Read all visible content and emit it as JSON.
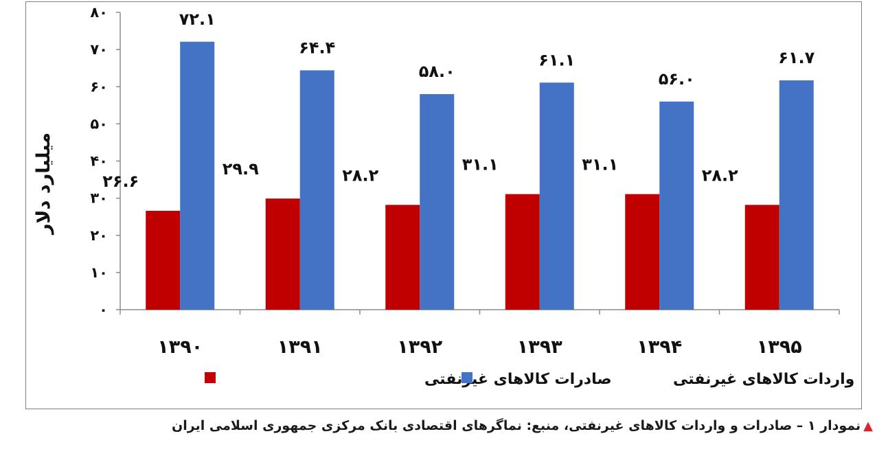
{
  "chart_data": {
    "type": "bar",
    "categories": [
      "۱۳۹۰",
      "۱۳۹۱",
      "۱۳۹۲",
      "۱۳۹۳",
      "۱۳۹۴",
      "۱۳۹۵"
    ],
    "series": [
      {
        "name": "صادرات کالاهای غیرنفتی",
        "color": "#c00000",
        "values": [
          26.6,
          29.9,
          28.2,
          31.1,
          31.1,
          28.2
        ],
        "labels": [
          "۲۶.۶",
          "۲۹.۹",
          "۲۸.۲",
          "۳۱.۱",
          "۳۱.۱",
          "۲۸.۲"
        ]
      },
      {
        "name": "واردات کالاهای غیرنفتی",
        "color": "#4472c4",
        "values": [
          72.1,
          64.4,
          58.0,
          61.1,
          56.0,
          61.7
        ],
        "labels": [
          "۷۲.۱",
          "۶۴.۴",
          "۵۸.۰",
          "۶۱.۱",
          "۵۶.۰",
          "۶۱.۷"
        ]
      }
    ],
    "ylabel": "میلیارد دلار",
    "ylim": [
      0,
      80
    ],
    "yticks": [
      0,
      10,
      20,
      30,
      40,
      50,
      60,
      70,
      80
    ],
    "ytick_labels": [
      "۰",
      "۱۰",
      "۲۰",
      "۳۰",
      "۴۰",
      "۵۰",
      "۶۰",
      "۷۰",
      "۸۰"
    ],
    "legend_position": "bottom",
    "grid": false
  },
  "caption": {
    "marker": "▲",
    "text": "نمودار ۱ – صادرات و واردات کالاهای غیرنفتی، منبع: نماگرهای اقتصادی بانک مرکزی جمهوری اسلامی ایران"
  }
}
